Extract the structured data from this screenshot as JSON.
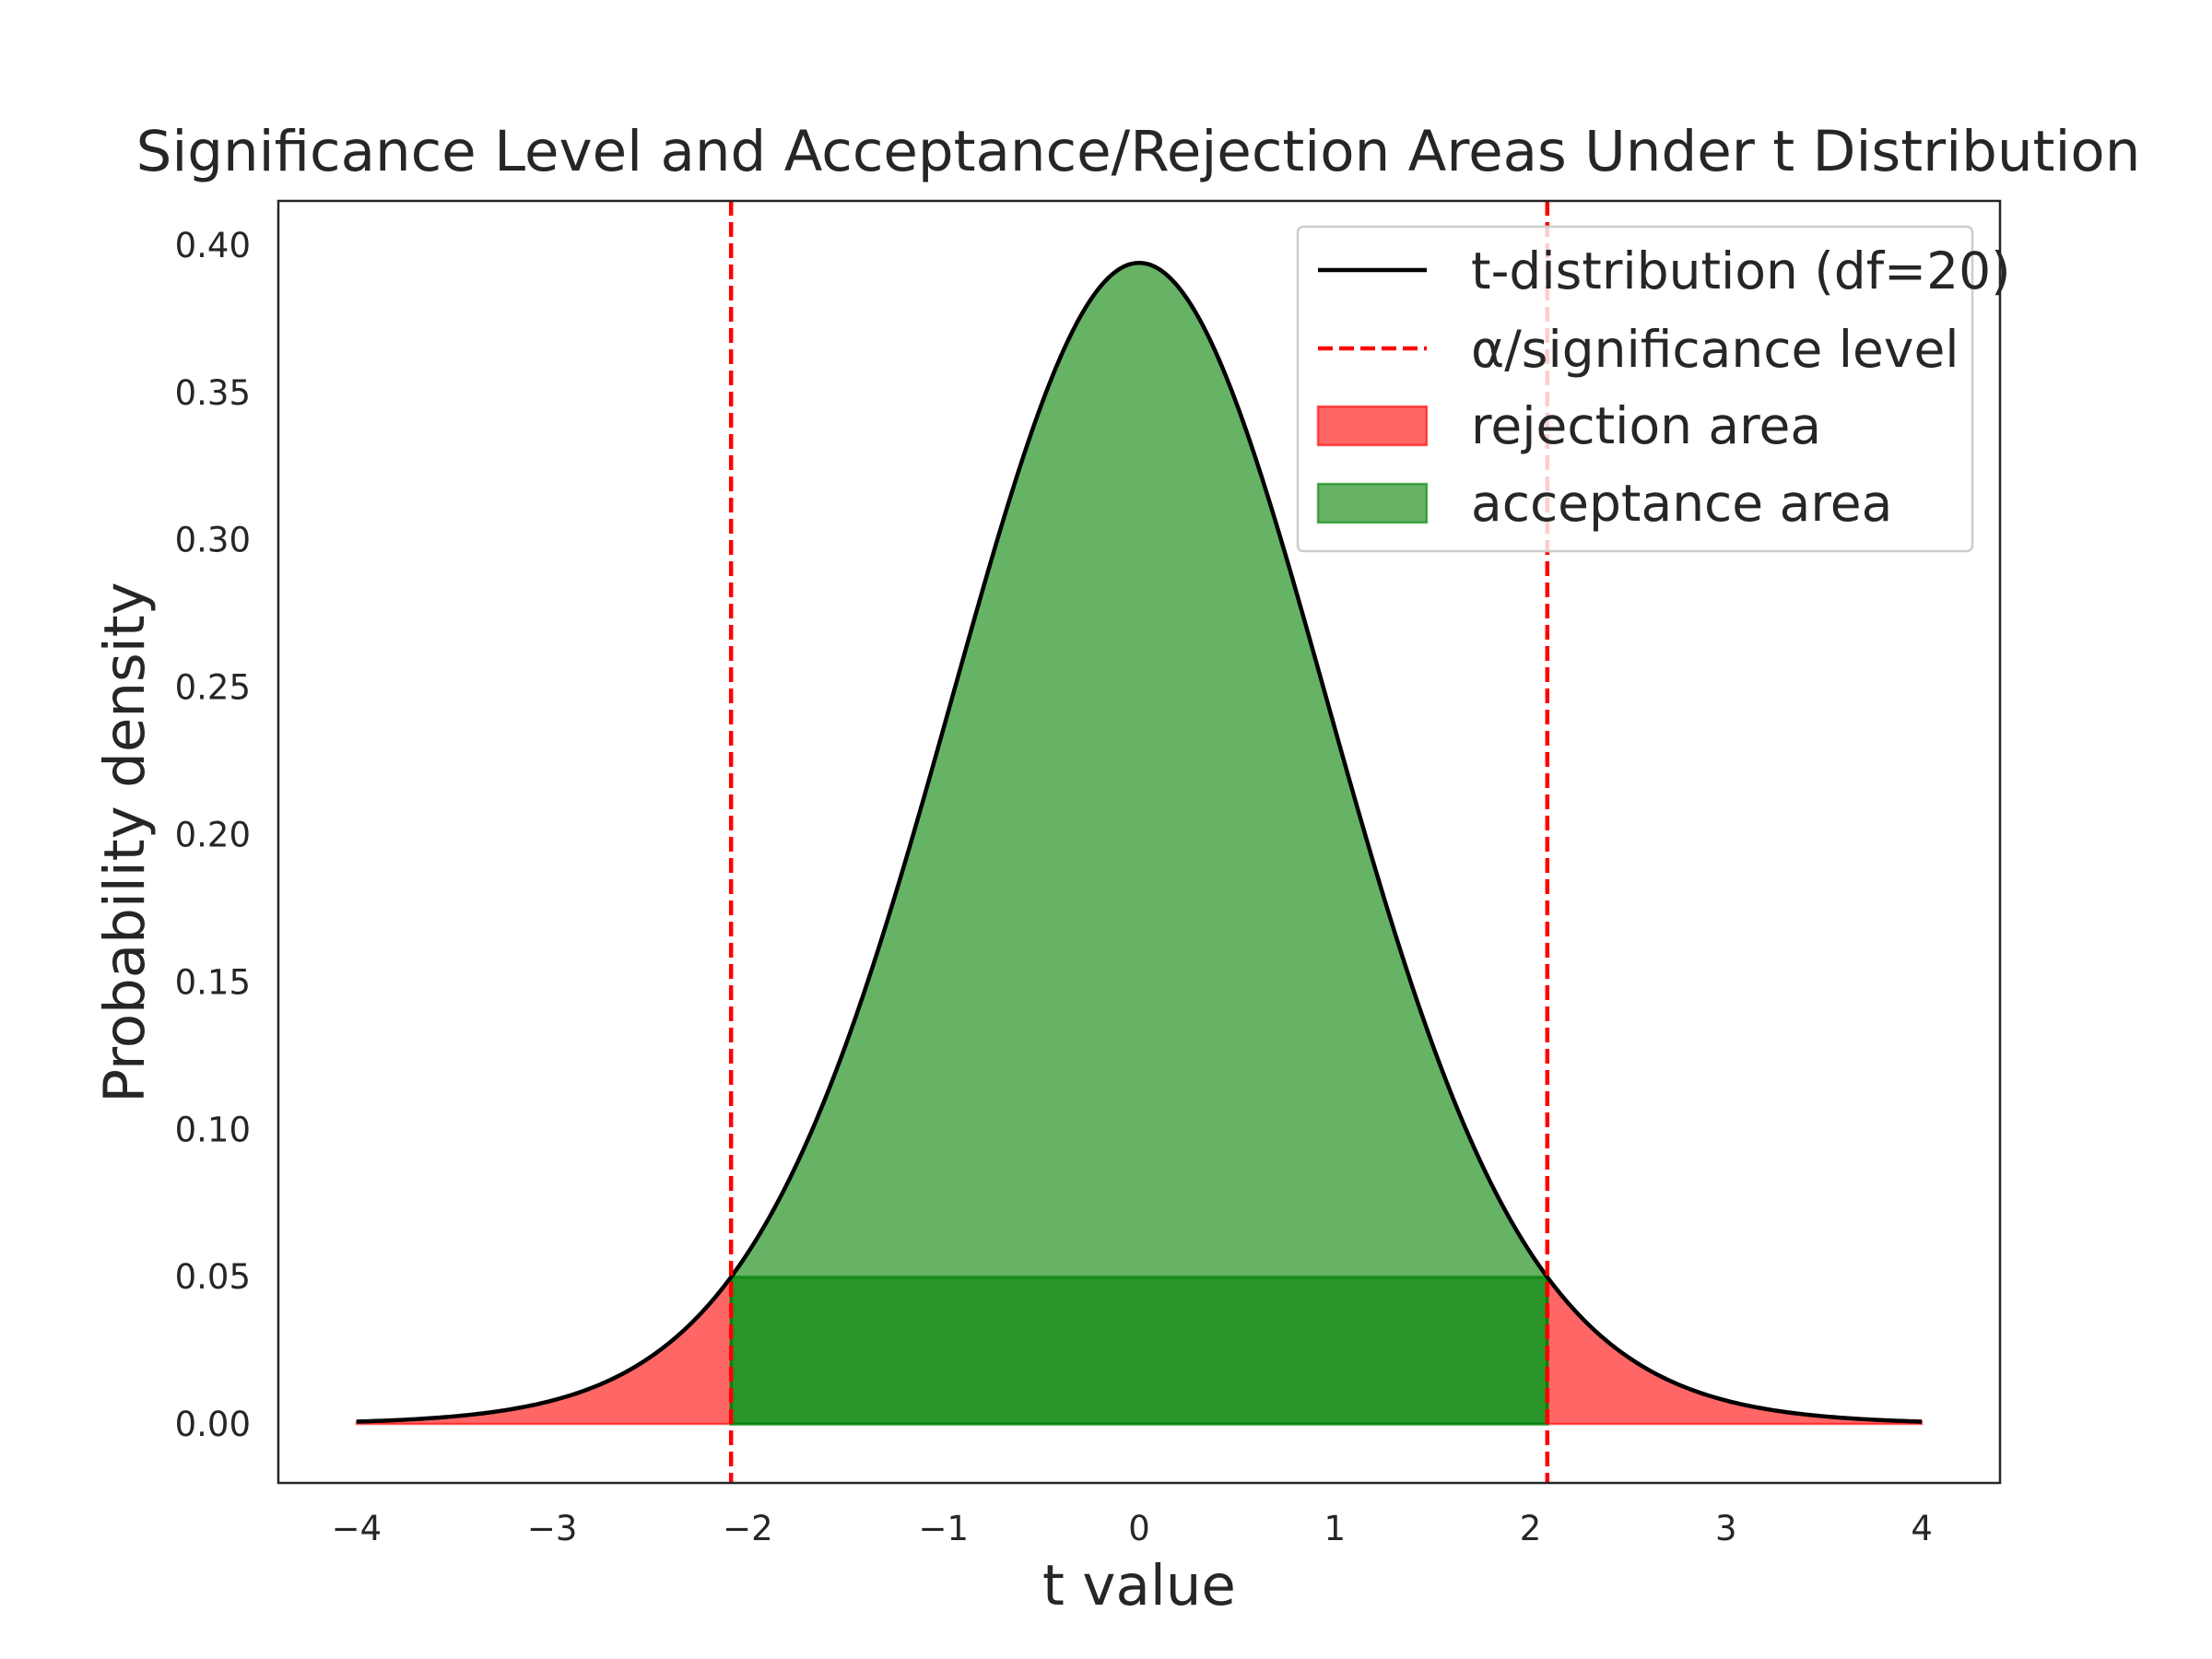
{
  "chart_data": {
    "type": "area",
    "title": "Significance Level and Acceptance/Rejection Areas Under t Distribution",
    "xlabel": "t value",
    "ylabel": "Probability density",
    "xlim": [
      -4.4,
      4.4
    ],
    "ylim": [
      -0.02,
      0.415
    ],
    "x_ticks": [
      -4,
      -3,
      -2,
      -1,
      0,
      1,
      2,
      3,
      4
    ],
    "x_tick_labels": [
      "−4",
      "−3",
      "−2",
      "−1",
      "0",
      "1",
      "2",
      "3",
      "4"
    ],
    "y_ticks": [
      0.0,
      0.05,
      0.1,
      0.15,
      0.2,
      0.25,
      0.3,
      0.35,
      0.4
    ],
    "y_tick_labels": [
      "0.00",
      "0.05",
      "0.10",
      "0.15",
      "0.20",
      "0.25",
      "0.30",
      "0.35",
      "0.40"
    ],
    "grid": false,
    "legend_position": "top-right",
    "distribution": {
      "name": "t",
      "df": 20,
      "x_range": [
        -4,
        4
      ]
    },
    "critical_values": [
      -2.086,
      2.086
    ],
    "series": [
      {
        "name": "t-distribution (df=20)",
        "kind": "line",
        "color": "#000000"
      },
      {
        "name": "α/significance level",
        "kind": "vline",
        "color": "#ff0000",
        "x": [
          -2.086,
          2.086
        ]
      },
      {
        "name": "rejection area",
        "kind": "fill",
        "color": "#ff0000",
        "opacity": 0.6
      },
      {
        "name": "acceptance area",
        "kind": "fill",
        "color": "#008000",
        "opacity": 0.6
      }
    ]
  }
}
